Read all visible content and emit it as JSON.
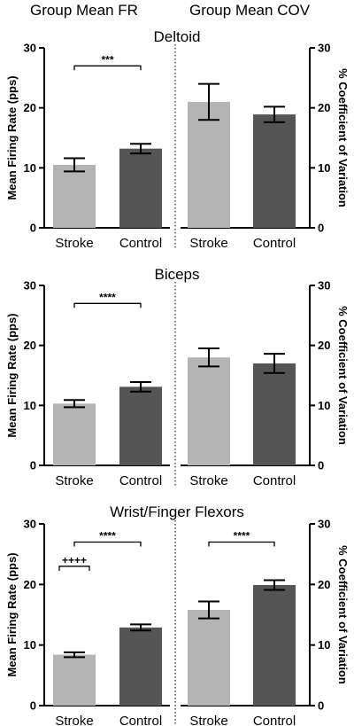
{
  "header": {
    "left": "Group Mean FR",
    "right": "Group Mean COV"
  },
  "chart_data": [
    {
      "type": "bar",
      "title": "Deltoid",
      "categories": [
        "Stroke",
        "Control"
      ],
      "left": {
        "ylabel": "Mean Firing Rate (pps)",
        "ylim": [
          0,
          30
        ],
        "yticks": [
          0,
          10,
          20,
          30
        ],
        "values": [
          10.5,
          13.2
        ],
        "errors": [
          1.1,
          0.8
        ],
        "colors": [
          "#b4b4b4",
          "#555555"
        ],
        "significance": [
          {
            "label": "***",
            "from": 0,
            "to": 1,
            "y": 27
          }
        ]
      },
      "right": {
        "ylabel": "% Coefficient of Variation",
        "ylim": [
          0,
          30
        ],
        "yticks": [
          0,
          10,
          20,
          30
        ],
        "values": [
          21.0,
          18.9
        ],
        "errors": [
          3.0,
          1.3
        ],
        "colors": [
          "#b4b4b4",
          "#555555"
        ],
        "significance": []
      }
    },
    {
      "type": "bar",
      "title": "Biceps",
      "categories": [
        "Stroke",
        "Control"
      ],
      "left": {
        "ylabel": "Mean Firing Rate (pps)",
        "ylim": [
          0,
          30
        ],
        "yticks": [
          0,
          10,
          20,
          30
        ],
        "values": [
          10.3,
          13.1
        ],
        "errors": [
          0.6,
          0.8
        ],
        "colors": [
          "#b4b4b4",
          "#555555"
        ],
        "significance": [
          {
            "label": "****",
            "from": 0,
            "to": 1,
            "y": 27
          }
        ]
      },
      "right": {
        "ylabel": "% Coefficient of Variation",
        "ylim": [
          0,
          30
        ],
        "yticks": [
          0,
          10,
          20,
          30
        ],
        "values": [
          18.0,
          17.0
        ],
        "errors": [
          1.5,
          1.6
        ],
        "colors": [
          "#b4b4b4",
          "#555555"
        ],
        "significance": []
      }
    },
    {
      "type": "bar",
      "title": "Wrist/Finger Flexors",
      "categories": [
        "Stroke",
        "Control"
      ],
      "left": {
        "ylabel": "Mean Firing Rate (pps)",
        "ylim": [
          0,
          30
        ],
        "yticks": [
          0,
          10,
          20,
          30
        ],
        "values": [
          8.4,
          12.9
        ],
        "errors": [
          0.4,
          0.5
        ],
        "colors": [
          "#b4b4b4",
          "#555555"
        ],
        "significance": [
          {
            "label": "****",
            "from": 0,
            "to": 1,
            "y": 27
          },
          {
            "label": "++++",
            "from": 0,
            "to": 0,
            "y": 23
          }
        ]
      },
      "right": {
        "ylabel": "% Coefficient of Variation",
        "ylim": [
          0,
          30
        ],
        "yticks": [
          0,
          10,
          20,
          30
        ],
        "values": [
          15.8,
          19.9
        ],
        "errors": [
          1.4,
          0.8
        ],
        "colors": [
          "#b4b4b4",
          "#555555"
        ],
        "significance": [
          {
            "label": "****",
            "from": 0,
            "to": 1,
            "y": 27
          }
        ]
      }
    }
  ]
}
